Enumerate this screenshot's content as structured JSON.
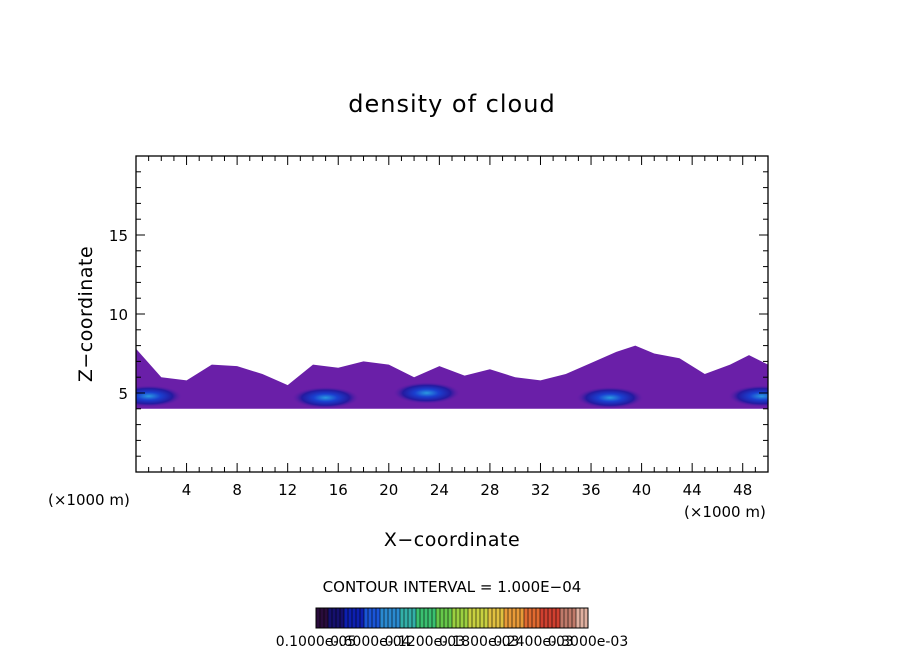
{
  "chart_data": {
    "type": "heatmap",
    "title": "density of cloud",
    "xlabel": "X−coordinate",
    "ylabel": "Z−coordinate",
    "x_unit": "(×1000 m)",
    "y_unit": "(×1000 m)",
    "xlim": [
      0,
      50
    ],
    "ylim": [
      0,
      20
    ],
    "x_ticks": [
      4,
      8,
      12,
      16,
      20,
      24,
      28,
      32,
      36,
      40,
      44,
      48
    ],
    "y_ticks": [
      5,
      10,
      15
    ],
    "contour_interval_label": "CONTOUR INTERVAL = 1.000E−04",
    "colorbar": {
      "labels": [
        "0.1000e-05",
        "0.6000e-04",
        "0.1200e-03",
        "0.1800e-03",
        "0.2400e-03",
        "0.3000e-03"
      ],
      "colors": [
        "#2a0c3c",
        "#15106e",
        "#0d1fb0",
        "#1a55d8",
        "#2a8ad0",
        "#33b0a8",
        "#3ac070",
        "#66c84a",
        "#9bd040",
        "#c8d040",
        "#e0c040",
        "#e89a38",
        "#e06a30",
        "#d04030",
        "#c07a6a",
        "#e0b0a0"
      ]
    },
    "cloud_region": {
      "z_bottom": 4.0,
      "z_top_profile": [
        [
          0,
          7.8
        ],
        [
          2,
          6.0
        ],
        [
          4,
          5.8
        ],
        [
          6,
          6.8
        ],
        [
          8,
          6.7
        ],
        [
          10,
          6.2
        ],
        [
          12,
          5.5
        ],
        [
          14,
          6.8
        ],
        [
          16,
          6.6
        ],
        [
          18,
          7.0
        ],
        [
          20,
          6.8
        ],
        [
          22,
          6.0
        ],
        [
          24,
          6.7
        ],
        [
          26,
          6.1
        ],
        [
          28,
          6.5
        ],
        [
          30,
          6.0
        ],
        [
          32,
          5.8
        ],
        [
          34,
          6.2
        ],
        [
          36,
          6.9
        ],
        [
          38,
          7.6
        ],
        [
          39.5,
          8.0
        ],
        [
          41,
          7.5
        ],
        [
          43,
          7.2
        ],
        [
          45,
          6.2
        ],
        [
          47,
          6.8
        ],
        [
          48.5,
          7.4
        ],
        [
          50,
          6.8
        ]
      ],
      "fill_color": "#6a1fa8",
      "cores": [
        {
          "x": 1.0,
          "z": 4.8,
          "value": "0.6000e-04"
        },
        {
          "x": 15.0,
          "z": 4.7,
          "value": "0.6000e-04"
        },
        {
          "x": 23.0,
          "z": 5.0,
          "value": "0.1200e-03"
        },
        {
          "x": 37.5,
          "z": 4.7,
          "value": "0.6000e-04"
        },
        {
          "x": 49.5,
          "z": 4.8,
          "value": "0.6000e-04"
        }
      ]
    }
  }
}
